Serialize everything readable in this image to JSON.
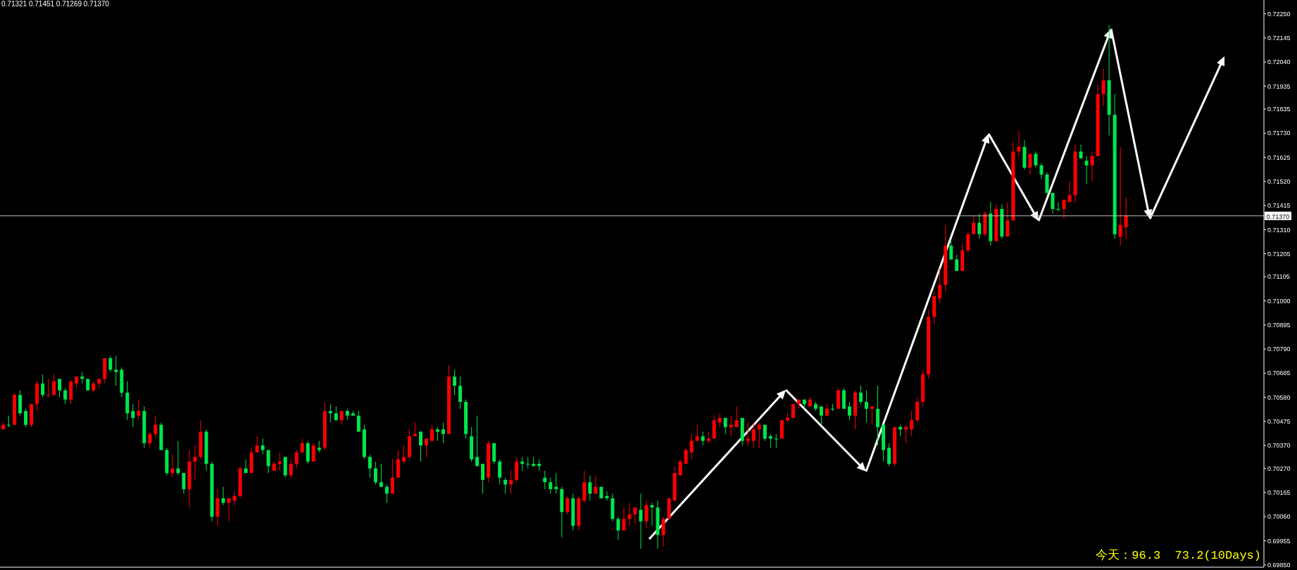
{
  "chart_data": {
    "type": "candlestick",
    "categories": [
      null,
      null,
      null,
      null,
      null,
      null,
      null,
      null,
      null,
      null,
      null,
      null,
      null,
      null,
      null,
      null,
      null,
      null,
      null,
      null,
      null,
      null,
      null,
      null,
      null,
      null,
      null,
      null,
      null,
      null,
      null,
      null,
      null,
      null,
      null,
      null,
      null,
      null,
      null,
      null,
      null,
      null,
      null,
      null,
      null,
      null,
      null,
      null,
      null,
      null,
      null,
      null,
      null,
      null,
      null,
      null,
      null,
      null,
      null,
      null,
      null,
      null,
      null,
      null,
      null,
      null,
      null,
      null,
      null,
      null,
      null,
      null,
      null,
      null,
      null,
      null,
      null,
      null,
      null,
      null,
      null,
      null,
      null,
      null,
      null,
      null,
      null,
      null,
      null,
      null,
      null,
      null,
      null,
      null,
      null,
      null,
      null,
      null,
      null,
      null,
      null,
      null,
      null,
      null,
      null,
      null,
      null,
      null,
      null,
      null,
      null,
      null,
      null,
      null,
      null,
      null,
      null,
      null,
      null,
      null,
      null,
      null,
      null,
      null,
      null,
      null,
      null,
      null,
      null,
      null,
      null,
      null,
      null,
      null,
      null,
      null,
      null,
      null,
      null,
      null,
      null,
      null,
      null,
      null,
      null,
      null,
      null,
      null,
      null,
      null,
      null,
      null,
      null,
      null,
      null,
      null,
      null,
      null,
      null,
      null,
      null,
      null,
      null,
      null,
      null,
      null,
      null,
      null,
      null,
      null,
      null,
      null,
      null,
      null,
      null,
      null,
      null,
      null,
      null,
      null,
      null,
      null,
      null,
      null,
      null,
      null,
      null,
      null,
      null,
      null,
      null,
      null,
      null,
      null,
      null,
      null,
      null,
      null,
      null,
      null,
      null,
      null,
      null,
      null,
      null,
      null,
      null,
      null,
      null,
      null,
      null,
      null,
      null,
      null,
      null,
      null,
      null,
      null,
      null,
      null,
      null,
      null,
      null,
      null
    ],
    "ohlc": [
      [
        0.7044,
        0.7047,
        0.7044,
        0.7046
      ],
      [
        0.7046,
        0.705,
        0.7045,
        0.7046
      ],
      [
        0.7046,
        0.706,
        0.7046,
        0.7059
      ],
      [
        0.7059,
        0.7061,
        0.705,
        0.7051
      ],
      [
        0.7052,
        0.7053,
        0.7045,
        0.7046
      ],
      [
        0.7046,
        0.7055,
        0.7045,
        0.7055
      ],
      [
        0.7055,
        0.7065,
        0.7052,
        0.7064
      ],
      [
        0.7064,
        0.7068,
        0.7058,
        0.7059
      ],
      [
        0.7059,
        0.7066,
        0.7058,
        0.7059
      ],
      [
        0.7059,
        0.7068,
        0.7059,
        0.7065
      ],
      [
        0.7066,
        0.7066,
        0.7058,
        0.7061
      ],
      [
        0.7061,
        0.7062,
        0.7055,
        0.7057
      ],
      [
        0.7057,
        0.7065,
        0.7055,
        0.7065
      ],
      [
        0.7064,
        0.7067,
        0.7062,
        0.7067
      ],
      [
        0.7067,
        0.7069,
        0.7064,
        0.7066
      ],
      [
        0.7066,
        0.7066,
        0.7061,
        0.7061
      ],
      [
        0.7061,
        0.7065,
        0.706,
        0.7064
      ],
      [
        0.7064,
        0.7066,
        0.7062,
        0.7066
      ],
      [
        0.7066,
        0.7075,
        0.7064,
        0.7075
      ],
      [
        0.7075,
        0.7076,
        0.7069,
        0.707
      ],
      [
        0.707,
        0.7076,
        0.7063,
        0.7069
      ],
      [
        0.707,
        0.7071,
        0.7058,
        0.706
      ],
      [
        0.706,
        0.7065,
        0.7048,
        0.7051
      ],
      [
        0.7052,
        0.7055,
        0.7045,
        0.7049
      ],
      [
        0.705,
        0.7057,
        0.7048,
        0.7052
      ],
      [
        0.7052,
        0.7054,
        0.7036,
        0.7038
      ],
      [
        0.7038,
        0.7043,
        0.7036,
        0.7042
      ],
      [
        0.7042,
        0.705,
        0.704,
        0.7046
      ],
      [
        0.7046,
        0.7047,
        0.7035,
        0.7035
      ],
      [
        0.7035,
        0.7036,
        0.7024,
        0.7025
      ],
      [
        0.7025,
        0.7033,
        0.7023,
        0.7027
      ],
      [
        0.7027,
        0.7039,
        0.7024,
        0.7025
      ],
      [
        0.7025,
        0.7025,
        0.7016,
        0.7018
      ],
      [
        0.7018,
        0.7035,
        0.701,
        0.703
      ],
      [
        0.703,
        0.7037,
        0.7022,
        0.7032
      ],
      [
        0.7032,
        0.7048,
        0.7031,
        0.7043
      ],
      [
        0.7043,
        0.7044,
        0.7026,
        0.7029
      ],
      [
        0.7029,
        0.703,
        0.7004,
        0.7006
      ],
      [
        0.7006,
        0.7018,
        0.7002,
        0.7014
      ],
      [
        0.7014,
        0.7019,
        0.7011,
        0.7012
      ],
      [
        0.7012,
        0.7014,
        0.7004,
        0.7014
      ],
      [
        0.7013,
        0.7017,
        0.7011,
        0.7015
      ],
      [
        0.7015,
        0.7028,
        0.7014,
        0.7027
      ],
      [
        0.7027,
        0.7031,
        0.7025,
        0.7025
      ],
      [
        0.7025,
        0.7036,
        0.7025,
        0.7034
      ],
      [
        0.7034,
        0.7041,
        0.7034,
        0.7037
      ],
      [
        0.7037,
        0.704,
        0.7033,
        0.7035
      ],
      [
        0.7035,
        0.7035,
        0.7025,
        0.7028
      ],
      [
        0.7026,
        0.703,
        0.7026,
        0.7029
      ],
      [
        0.7029,
        0.7034,
        0.7026,
        0.703
      ],
      [
        0.7032,
        0.7032,
        0.7023,
        0.7024
      ],
      [
        0.7024,
        0.7031,
        0.7023,
        0.7029
      ],
      [
        0.7029,
        0.7035,
        0.7027,
        0.7034
      ],
      [
        0.7034,
        0.704,
        0.7034,
        0.7038
      ],
      [
        0.7038,
        0.7039,
        0.7029,
        0.703
      ],
      [
        0.703,
        0.7038,
        0.703,
        0.7037
      ],
      [
        0.7036,
        0.7039,
        0.7034,
        0.7035
      ],
      [
        0.7036,
        0.7056,
        0.7035,
        0.7052
      ],
      [
        0.7052,
        0.7055,
        0.7047,
        0.7051
      ],
      [
        0.7051,
        0.7054,
        0.7048,
        0.7048
      ],
      [
        0.7048,
        0.7052,
        0.7046,
        0.7052
      ],
      [
        0.7052,
        0.7053,
        0.7048,
        0.705
      ],
      [
        0.7051,
        0.7052,
        0.705,
        0.705
      ],
      [
        0.705,
        0.7052,
        0.7043,
        0.7043
      ],
      [
        0.7044,
        0.7046,
        0.7031,
        0.7032
      ],
      [
        0.7032,
        0.7033,
        0.7023,
        0.7027
      ],
      [
        0.7027,
        0.703,
        0.702,
        0.7021
      ],
      [
        0.7021,
        0.7029,
        0.7019,
        0.7019
      ],
      [
        0.7019,
        0.702,
        0.7012,
        0.7016
      ],
      [
        0.7016,
        0.7031,
        0.7016,
        0.7023
      ],
      [
        0.7023,
        0.7035,
        0.7023,
        0.7031
      ],
      [
        0.703,
        0.7037,
        0.7029,
        0.7032
      ],
      [
        0.7032,
        0.7044,
        0.7031,
        0.7041
      ],
      [
        0.7041,
        0.7047,
        0.7041,
        0.7042
      ],
      [
        0.7043,
        0.7043,
        0.703,
        0.7037
      ],
      [
        0.7037,
        0.704,
        0.7032,
        0.704
      ],
      [
        0.7039,
        0.7046,
        0.7039,
        0.7044
      ],
      [
        0.7044,
        0.7045,
        0.7039,
        0.7043
      ],
      [
        0.7044,
        0.7047,
        0.7038,
        0.7042
      ],
      [
        0.7042,
        0.7072,
        0.7042,
        0.7067
      ],
      [
        0.7067,
        0.707,
        0.7059,
        0.7063
      ],
      [
        0.7063,
        0.7067,
        0.7053,
        0.7056
      ],
      [
        0.7056,
        0.7057,
        0.704,
        0.7042
      ],
      [
        0.7041,
        0.7045,
        0.703,
        0.7031
      ],
      [
        0.7032,
        0.705,
        0.7028,
        0.7028
      ],
      [
        0.7029,
        0.7029,
        0.7016,
        0.7022
      ],
      [
        0.7023,
        0.7039,
        0.7021,
        0.7038
      ],
      [
        0.7038,
        0.7038,
        0.7029,
        0.703
      ],
      [
        0.703,
        0.7031,
        0.702,
        0.7023
      ],
      [
        0.7022,
        0.7023,
        0.7016,
        0.702
      ],
      [
        0.702,
        0.7026,
        0.7016,
        0.7022
      ],
      [
        0.7022,
        0.7032,
        0.7021,
        0.703
      ],
      [
        0.703,
        0.7032,
        0.7026,
        0.7029
      ],
      [
        0.7029,
        0.7032,
        0.7027,
        0.7029
      ],
      [
        0.7029,
        0.7032,
        0.7028,
        0.7028
      ],
      [
        0.7029,
        0.7031,
        0.7026,
        0.7028
      ],
      [
        0.7023,
        0.7026,
        0.7018,
        0.7021
      ],
      [
        0.7021,
        0.7023,
        0.7016,
        0.7018
      ],
      [
        0.7019,
        0.7025,
        0.7016,
        0.7018
      ],
      [
        0.7018,
        0.7019,
        0.6997,
        0.7008
      ],
      [
        0.7008,
        0.7015,
        0.7007,
        0.7014
      ],
      [
        0.7014,
        0.7016,
        0.7,
        0.7002
      ],
      [
        0.7002,
        0.7015,
        0.7,
        0.7014
      ],
      [
        0.7013,
        0.7026,
        0.7012,
        0.7021
      ],
      [
        0.7021,
        0.7024,
        0.7013,
        0.7016
      ],
      [
        0.7016,
        0.7024,
        0.7016,
        0.7019
      ],
      [
        0.7019,
        0.7019,
        0.7014,
        0.7014
      ],
      [
        0.7015,
        0.7017,
        0.7013,
        0.7014
      ],
      [
        0.7014,
        0.7016,
        0.7004,
        0.7005
      ],
      [
        0.7005,
        0.7006,
        0.6996,
        0.7
      ],
      [
        0.7,
        0.701,
        0.7,
        0.7005
      ],
      [
        0.7005,
        0.7012,
        0.7002,
        0.7007
      ],
      [
        0.7007,
        0.701,
        0.7003,
        0.701
      ],
      [
        0.7009,
        0.7016,
        0.6992,
        0.7004
      ],
      [
        0.7004,
        0.7013,
        0.7001,
        0.7011
      ],
      [
        0.7011,
        0.7012,
        0.7002,
        0.701
      ],
      [
        0.701,
        0.7013,
        0.6992,
        0.6998
      ],
      [
        0.6998,
        0.7006,
        0.6993,
        0.7005
      ],
      [
        0.7005,
        0.7014,
        0.7005,
        0.7014
      ],
      [
        0.7013,
        0.7028,
        0.7013,
        0.7025
      ],
      [
        0.7024,
        0.7031,
        0.7024,
        0.703
      ],
      [
        0.7029,
        0.7036,
        0.7029,
        0.7035
      ],
      [
        0.7034,
        0.7042,
        0.7031,
        0.7039
      ],
      [
        0.7039,
        0.7046,
        0.7039,
        0.7041
      ],
      [
        0.7041,
        0.7043,
        0.7037,
        0.7039
      ],
      [
        0.7039,
        0.7043,
        0.7038,
        0.704
      ],
      [
        0.704,
        0.705,
        0.704,
        0.7048
      ],
      [
        0.7047,
        0.7051,
        0.7045,
        0.7049
      ],
      [
        0.7049,
        0.7049,
        0.7042,
        0.7045
      ],
      [
        0.7045,
        0.705,
        0.7041,
        0.7046
      ],
      [
        0.7045,
        0.7054,
        0.7045,
        0.7048
      ],
      [
        0.7049,
        0.7049,
        0.7037,
        0.7039
      ],
      [
        0.7039,
        0.7047,
        0.7037,
        0.704
      ],
      [
        0.7039,
        0.7047,
        0.7036,
        0.7044
      ],
      [
        0.7044,
        0.7047,
        0.7036,
        0.7046
      ],
      [
        0.7046,
        0.7046,
        0.7039,
        0.704
      ],
      [
        0.7041,
        0.7042,
        0.7036,
        0.704
      ],
      [
        0.704,
        0.7042,
        0.7036,
        0.704
      ],
      [
        0.704,
        0.7048,
        0.704,
        0.7048
      ],
      [
        0.7048,
        0.7051,
        0.7047,
        0.7049
      ],
      [
        0.7049,
        0.7055,
        0.7049,
        0.7055
      ],
      [
        0.7055,
        0.7057,
        0.7053,
        0.7057
      ],
      [
        0.7057,
        0.7057,
        0.7053,
        0.7055
      ],
      [
        0.7054,
        0.7058,
        0.7054,
        0.7057
      ],
      [
        0.7055,
        0.7056,
        0.7052,
        0.7053
      ],
      [
        0.7054,
        0.7054,
        0.7046,
        0.705
      ],
      [
        0.705,
        0.7055,
        0.705,
        0.7053
      ],
      [
        0.7053,
        0.7055,
        0.7052,
        0.7053
      ],
      [
        0.7053,
        0.7062,
        0.7053,
        0.7061
      ],
      [
        0.7061,
        0.7062,
        0.7053,
        0.7053
      ],
      [
        0.7054,
        0.7056,
        0.7048,
        0.705
      ],
      [
        0.705,
        0.7061,
        0.7044,
        0.706
      ],
      [
        0.706,
        0.7063,
        0.7055,
        0.7056
      ],
      [
        0.7056,
        0.7061,
        0.7047,
        0.7053
      ],
      [
        0.7053,
        0.7054,
        0.7046,
        0.7054
      ],
      [
        0.7053,
        0.7063,
        0.7037,
        0.7045
      ],
      [
        0.7046,
        0.7046,
        0.703,
        0.7035
      ],
      [
        0.7036,
        0.7038,
        0.7028,
        0.7029
      ],
      [
        0.7029,
        0.7045,
        0.7028,
        0.7045
      ],
      [
        0.7045,
        0.7046,
        0.7041,
        0.7044
      ],
      [
        0.7044,
        0.7046,
        0.7038,
        0.7045
      ],
      [
        0.7044,
        0.7052,
        0.7041,
        0.7048
      ],
      [
        0.7048,
        0.7058,
        0.7047,
        0.7056
      ],
      [
        0.7056,
        0.707,
        0.7054,
        0.7068
      ],
      [
        0.7068,
        0.7096,
        0.7066,
        0.7093
      ],
      [
        0.7093,
        0.7104,
        0.709,
        0.7102
      ],
      [
        0.7101,
        0.7114,
        0.7099,
        0.7107
      ],
      [
        0.7107,
        0.7133,
        0.7104,
        0.7124
      ],
      [
        0.7124,
        0.7126,
        0.7118,
        0.7118
      ],
      [
        0.7118,
        0.712,
        0.7113,
        0.7113
      ],
      [
        0.7113,
        0.7125,
        0.7113,
        0.7122
      ],
      [
        0.7122,
        0.713,
        0.7121,
        0.7129
      ],
      [
        0.7129,
        0.7137,
        0.7129,
        0.7134
      ],
      [
        0.7134,
        0.7138,
        0.7127,
        0.7129
      ],
      [
        0.7129,
        0.7139,
        0.7128,
        0.7138
      ],
      [
        0.7138,
        0.7143,
        0.7124,
        0.7126
      ],
      [
        0.7126,
        0.7142,
        0.7126,
        0.714
      ],
      [
        0.714,
        0.7142,
        0.7127,
        0.7128
      ],
      [
        0.7128,
        0.7143,
        0.7128,
        0.7135
      ],
      [
        0.7135,
        0.7169,
        0.7135,
        0.7165
      ],
      [
        0.7165,
        0.7174,
        0.7163,
        0.7167
      ],
      [
        0.7167,
        0.717,
        0.7157,
        0.7158
      ],
      [
        0.7158,
        0.7164,
        0.7155,
        0.7164
      ],
      [
        0.7164,
        0.7165,
        0.7158,
        0.7159
      ],
      [
        0.7159,
        0.716,
        0.7153,
        0.7155
      ],
      [
        0.7155,
        0.7156,
        0.7146,
        0.7147
      ],
      [
        0.7147,
        0.7147,
        0.7138,
        0.714
      ],
      [
        0.714,
        0.7143,
        0.7139,
        0.714
      ],
      [
        0.714,
        0.7144,
        0.7136,
        0.7144
      ],
      [
        0.7143,
        0.7152,
        0.7143,
        0.7146
      ],
      [
        0.7146,
        0.7168,
        0.7143,
        0.7165
      ],
      [
        0.7165,
        0.7168,
        0.7162,
        0.7162
      ],
      [
        0.7161,
        0.7163,
        0.7151,
        0.7159
      ],
      [
        0.7159,
        0.7165,
        0.7152,
        0.7163
      ],
      [
        0.7163,
        0.7194,
        0.7163,
        0.719
      ],
      [
        0.719,
        0.7201,
        0.7185,
        0.7196
      ],
      [
        0.7196,
        0.722,
        0.7172,
        0.7181
      ],
      [
        0.7181,
        0.719,
        0.7127,
        0.7129
      ],
      [
        0.7128,
        0.7167,
        0.7124,
        0.7133
      ],
      [
        0.71321,
        0.71451,
        0.71269,
        0.7137
      ],
      null,
      null,
      null,
      null,
      null,
      null,
      null,
      null,
      null,
      null,
      null,
      null,
      null,
      null,
      null,
      null,
      null,
      null,
      null,
      null,
      null,
      null,
      null,
      null
    ],
    "colors": [
      "#ff0000",
      "#00e64d",
      "#ff0000",
      "#00e64d",
      "#00e64d",
      "#ff0000",
      "#ff0000",
      "#00e64d",
      "#ff0000",
      "#ff0000",
      "#00e64d",
      "#00e64d",
      "#ff0000",
      "#ff0000",
      "#00e64d",
      "#00e64d",
      "#ff0000",
      "#ff0000",
      "#ff0000",
      "#00e64d",
      "#00e64d",
      "#00e64d",
      "#00e64d",
      "#00e64d",
      "#ff0000",
      "#00e64d",
      "#ff0000",
      "#ff0000",
      "#00e64d",
      "#00e64d",
      "#ff0000",
      "#00e64d",
      "#00e64d",
      "#ff0000",
      "#ff0000",
      "#ff0000",
      "#00e64d",
      "#00e64d",
      "#ff0000",
      "#00e64d",
      "#ff0000",
      "#ff0000",
      "#ff0000",
      "#00e64d",
      "#ff0000",
      "#ff0000",
      "#00e64d",
      "#00e64d",
      "#ff0000",
      "#ff0000",
      "#00e64d",
      "#ff0000",
      "#ff0000",
      "#ff0000",
      "#00e64d",
      "#ff0000",
      "#00e64d",
      "#ff0000",
      "#00e64d",
      "#00e64d",
      "#ff0000",
      "#00e64d",
      "#00e64d",
      "#00e64d",
      "#00e64d",
      "#00e64d",
      "#00e64d",
      "#00e64d",
      "#00e64d",
      "#ff0000",
      "#ff0000",
      "#ff0000",
      "#ff0000",
      "#ff0000",
      "#00e64d",
      "#ff0000",
      "#ff0000",
      "#00e64d",
      "#00e64d",
      "#ff0000",
      "#00e64d",
      "#00e64d",
      "#00e64d",
      "#00e64d",
      "#00e64d",
      "#00e64d",
      "#ff0000",
      "#00e64d",
      "#00e64d",
      "#00e64d",
      "#ff0000",
      "#ff0000",
      "#00e64d",
      "#00e64d",
      "#00e64d",
      "#00e64d",
      "#00e64d",
      "#00e64d",
      "#00e64d",
      "#00e64d",
      "#ff0000",
      "#00e64d",
      "#ff0000",
      "#ff0000",
      "#00e64d",
      "#ff0000",
      "#00e64d",
      "#00e64d",
      "#00e64d",
      "#00e64d",
      "#ff0000",
      "#ff0000",
      "#ff0000",
      "#00e64d",
      "#ff0000",
      "#00e64d",
      "#00e64d",
      "#ff0000",
      "#ff0000",
      "#ff0000",
      "#ff0000",
      "#ff0000",
      "#ff0000",
      "#ff0000",
      "#00e64d",
      "#ff0000",
      "#ff0000",
      "#ff0000",
      "#00e64d",
      "#ff0000",
      "#ff0000",
      "#00e64d",
      "#ff0000",
      "#ff0000",
      "#ff0000",
      "#00e64d",
      "#00e64d",
      "#00e64d",
      "#ff0000",
      "#ff0000",
      "#ff0000",
      "#ff0000",
      "#00e64d",
      "#ff0000",
      "#00e64d",
      "#00e64d",
      "#ff0000",
      "#00e64d",
      "#ff0000",
      "#00e64d",
      "#00e64d",
      "#ff0000",
      "#00e64d",
      "#00e64d",
      "#ff0000",
      "#00e64d",
      "#00e64d",
      "#00e64d",
      "#ff0000",
      "#00e64d",
      "#ff0000",
      "#ff0000",
      "#ff0000",
      "#ff0000",
      "#ff0000",
      "#ff0000",
      "#ff0000",
      "#ff0000",
      "#00e64d",
      "#00e64d",
      "#ff0000",
      "#ff0000",
      "#ff0000",
      "#00e64d",
      "#ff0000",
      "#00e64d",
      "#ff0000",
      "#00e64d",
      "#ff0000",
      "#ff0000",
      "#ff0000",
      "#00e64d",
      "#ff0000",
      "#00e64d",
      "#00e64d",
      "#00e64d",
      "#00e64d",
      "#00e64d",
      "#ff0000",
      "#ff0000",
      "#ff0000",
      "#00e64d",
      "#00e64d",
      "#ff0000",
      "#ff0000",
      "#ff0000",
      "#00e64d",
      "#00e64d",
      "#ff0000",
      "#ff0000",
      null,
      null,
      null,
      null,
      null,
      null,
      null,
      null,
      null,
      null,
      null,
      null,
      null,
      null,
      null,
      null,
      null,
      null,
      null,
      null,
      null,
      null,
      null,
      null
    ],
    "ylim": [
      0.6984,
      0.7231
    ],
    "yticks": [
      {
        "value": 0.7225,
        "label": "0.72250"
      },
      {
        "value": 0.72145,
        "label": "0.72145"
      },
      {
        "value": 0.7204,
        "label": "0.72040"
      },
      {
        "value": 0.71935,
        "label": "0.71935"
      },
      {
        "value": 0.71835,
        "label": "0.71835"
      },
      {
        "value": 0.7173,
        "label": "0.71730"
      },
      {
        "value": 0.71625,
        "label": "0.71625"
      },
      {
        "value": 0.7152,
        "label": "0.71520"
      },
      {
        "value": 0.71415,
        "label": "0.71415"
      },
      {
        "value": 0.7131,
        "label": "0.71310"
      },
      {
        "value": 0.71205,
        "label": "0.71205"
      },
      {
        "value": 0.71105,
        "label": "0.71105"
      },
      {
        "value": 0.71,
        "label": "0.71000"
      },
      {
        "value": 0.70895,
        "label": "0.70895"
      },
      {
        "value": 0.7079,
        "label": "0.70790"
      },
      {
        "value": 0.70685,
        "label": "0.70685"
      },
      {
        "value": 0.7058,
        "label": "0.70580"
      },
      {
        "value": 0.70475,
        "label": "0.70475"
      },
      {
        "value": 0.7037,
        "label": "0.70370"
      },
      {
        "value": 0.7027,
        "label": "0.70270"
      },
      {
        "value": 0.70165,
        "label": "0.70165"
      },
      {
        "value": 0.7006,
        "label": "0.70060"
      },
      {
        "value": 0.69955,
        "label": "0.69955"
      },
      {
        "value": 0.6985,
        "label": "0.69850"
      }
    ],
    "ref_lines": [
      {
        "axis": "y",
        "value": 0.7137,
        "label": "0.71370",
        "color": "#c0c0c0"
      }
    ],
    "annotations": [
      "0.71321 0.71451 0.71269 0.71370",
      "今天：96.3  73.2(10Days)"
    ]
  }
}
